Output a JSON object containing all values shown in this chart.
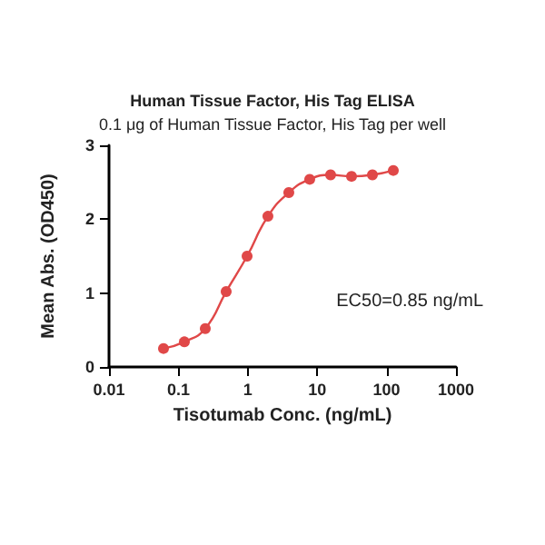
{
  "chart_data": {
    "type": "line",
    "title": "Human Tissue Factor, His Tag ELISA",
    "subtitle": "0.1 μg of Human Tissue Factor, His Tag per well",
    "xlabel": "Tisotumab Conc. (ng/mL)",
    "ylabel": "Mean Abs. (OD450)",
    "x": [
      0.061,
      0.122,
      0.244,
      0.488,
      0.977,
      1.95,
      3.9,
      7.8,
      15.6,
      31.25,
      62.5,
      125
    ],
    "series": [
      {
        "color": "#e04848",
        "values": [
          0.25,
          0.34,
          0.52,
          1.02,
          1.5,
          2.04,
          2.36,
          2.54,
          2.6,
          2.58,
          2.6,
          2.66
        ]
      }
    ],
    "log": "x",
    "xlim": [
      0.01,
      1000
    ],
    "xticks": [
      0.01,
      0.1,
      1,
      10,
      100,
      1000
    ],
    "ylim": [
      0,
      3
    ],
    "yticks": [
      0,
      1,
      2,
      3
    ],
    "marker": "circle",
    "line_style": "solid",
    "grid": false,
    "annotations": [
      "EC50=0.85 ng/mL"
    ]
  }
}
